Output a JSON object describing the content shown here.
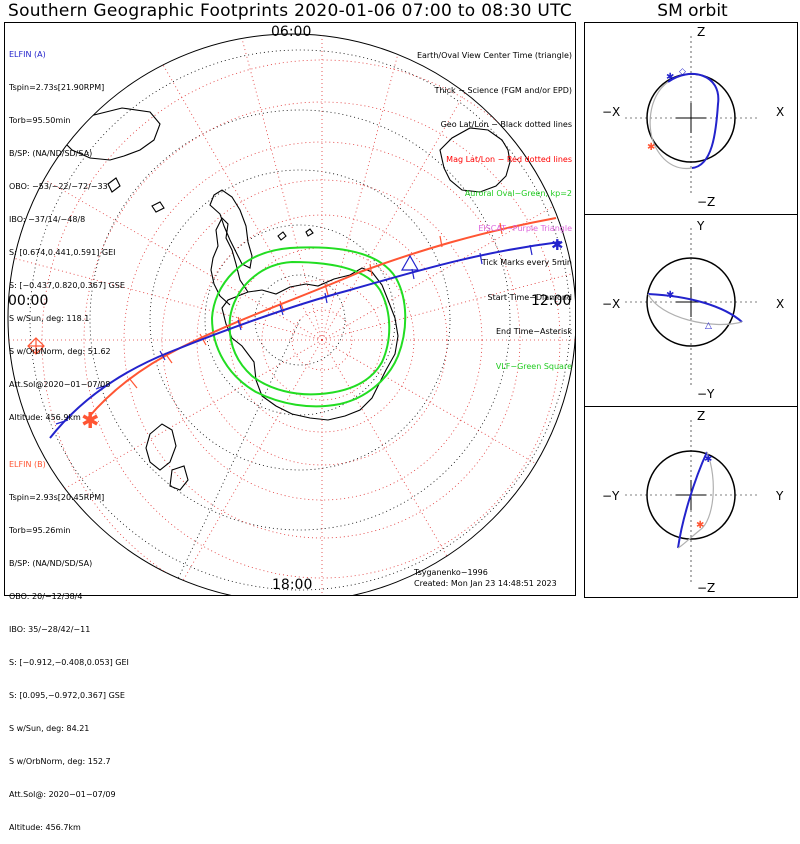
{
  "title": "Southern Geographic Footprints 2020-01-06 07:00 to 08:30 UTC",
  "sm_title": "SM orbit",
  "clock": {
    "top": "06:00",
    "left": "00:00",
    "right": "12:00",
    "bottom": "18:00"
  },
  "elfin_a": {
    "name": "ELFIN (A)",
    "color": "#2323cc",
    "lines": [
      "Tspin=2.73s[21.90RPM]",
      "Torb=95.50min",
      "B/SP: (NA/ND/SD/SA)",
      "OBO: −53/−22/−72/−33",
      "IBO: −37/14/−48/8",
      "S: [0.674,0.441,0.591] GEI",
      "S: [−0.437,0.820,0.367] GSE",
      "S w/Sun, deg: 118.1",
      "S w/OrbNorm, deg: 51.62",
      "Att.Sol@2020−01−07/08",
      "Altitude: 456.9km"
    ]
  },
  "elfin_b": {
    "name": "ELFIN (B)",
    "color": "#ff5533",
    "lines": [
      "Tspin=2.93s[20.45RPM]",
      "Torb=95.26min",
      "B/SP: (NA/ND/SD/SA)",
      "OBO: 20/−12/38/4",
      "IBO: 35/−28/42/−11",
      "S: [−0.912,−0.408,0.053] GEI",
      "S: [0.095,−0.972,0.367] GSE",
      "S w/Sun, deg: 84.21",
      "S w/OrbNorm, deg: 152.7",
      "Att.Sol@: 2020−01−07/09",
      "Altitude: 456.7km"
    ]
  },
  "legend": [
    {
      "text": "Earth/Oval View Center Time (triangle)",
      "color": "#000000"
    },
    {
      "text": "Thick − Science (FGM and/or EPD)",
      "color": "#000000"
    },
    {
      "text": "Geo Lat/Lon − Black dotted lines",
      "color": "#000000"
    },
    {
      "text": "Mag Lat/Lon − Red dotted lines",
      "color": "#ff0000"
    },
    {
      "text": "Auroral Oval−Green, kp=2",
      "color": "#22cc22"
    },
    {
      "text": "EISCAT−Purple Triangle",
      "color": "#dd66dd"
    },
    {
      "text": "Tick Marks every 5min",
      "color": "#000000"
    },
    {
      "text": "Start Time−Diamond",
      "color": "#000000"
    },
    {
      "text": "End Time−Asterisk",
      "color": "#000000"
    },
    {
      "text": "VLF−Green Square",
      "color": "#22cc22"
    }
  ],
  "credit": "Tsyganenko−1996",
  "created": "Created: Mon Jan 23 14:48:51 2023",
  "sm_panels": [
    {
      "top": "Z",
      "bottom": "−Z",
      "left": "−X",
      "right": "X"
    },
    {
      "top": "Y",
      "bottom": "−Y",
      "left": "−X",
      "right": "X"
    },
    {
      "top": "Z",
      "bottom": "−Z",
      "left": "−Y",
      "right": "Y"
    }
  ]
}
